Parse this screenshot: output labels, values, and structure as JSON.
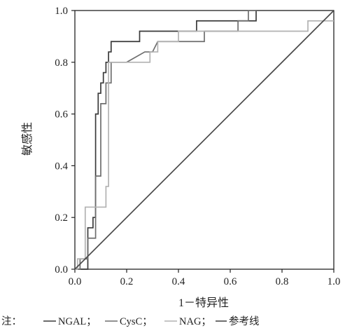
{
  "chart_data": {
    "type": "line",
    "xlabel": "1－特异性",
    "ylabel": "敏感性",
    "xlim": [
      0,
      1
    ],
    "ylim": [
      0,
      1
    ],
    "x_ticks": [
      "0.0",
      "0.2",
      "0.4",
      "0.6",
      "0.8",
      "1.0"
    ],
    "y_ticks": [
      "0.0",
      "0.2",
      "0.4",
      "0.6",
      "0.8",
      "1.0"
    ],
    "grid": false,
    "legend_position": "bottom",
    "legend": {
      "prefix": "注：",
      "entries": [
        "NGAL；",
        "CysC；",
        "NAG；",
        "参考线"
      ]
    },
    "series": [
      {
        "name": "NGAL",
        "color": "#3a3a3a",
        "x": [
          0,
          0.05,
          0.05,
          0.07,
          0.07,
          0.08,
          0.08,
          0.09,
          0.09,
          0.1,
          0.1,
          0.11,
          0.11,
          0.12,
          0.12,
          0.13,
          0.13,
          0.14,
          0.14,
          0.16,
          0.16,
          0.25,
          0.25,
          0.31,
          0.31,
          0.47,
          0.47,
          0.7,
          0.7,
          0.82,
          0.82,
          1.0
        ],
        "y": [
          0,
          0,
          0.16,
          0.16,
          0.2,
          0.2,
          0.6,
          0.6,
          0.68,
          0.68,
          0.72,
          0.72,
          0.76,
          0.76,
          0.8,
          0.8,
          0.84,
          0.84,
          0.88,
          0.88,
          0.88,
          0.88,
          0.92,
          0.92,
          0.92,
          0.92,
          0.96,
          0.96,
          1.0,
          1.0,
          1.0,
          1.0
        ]
      },
      {
        "name": "CysC",
        "color": "#6e6e6e",
        "x": [
          0,
          0.02,
          0.02,
          0.05,
          0.05,
          0.08,
          0.08,
          0.1,
          0.1,
          0.12,
          0.12,
          0.14,
          0.14,
          0.2,
          0.27,
          0.3,
          0.3,
          0.32,
          0.38,
          0.5,
          0.5,
          0.63,
          0.63,
          0.67,
          0.67,
          1.0
        ],
        "y": [
          0,
          0,
          0.04,
          0.04,
          0.12,
          0.12,
          0.36,
          0.36,
          0.64,
          0.64,
          0.72,
          0.72,
          0.8,
          0.8,
          0.84,
          0.84,
          0.84,
          0.88,
          0.88,
          0.88,
          0.92,
          0.92,
          0.96,
          0.96,
          1.0,
          1.0
        ]
      },
      {
        "name": "NAG",
        "color": "#b2b2b2",
        "x": [
          0,
          0.01,
          0.01,
          0.04,
          0.04,
          0.1,
          0.1,
          0.12,
          0.12,
          0.13,
          0.13,
          0.2,
          0.2,
          0.29,
          0.29,
          0.32,
          0.32,
          0.4,
          0.4,
          0.9,
          0.9,
          1.0
        ],
        "y": [
          0,
          0,
          0.04,
          0.04,
          0.24,
          0.24,
          0.24,
          0.24,
          0.32,
          0.32,
          0.8,
          0.8,
          0.8,
          0.8,
          0.84,
          0.84,
          0.88,
          0.88,
          0.92,
          0.92,
          0.96,
          0.96
        ]
      },
      {
        "name": "参考线",
        "color": "#4a4a4a",
        "x": [
          0,
          1
        ],
        "y": [
          0,
          1
        ]
      }
    ]
  }
}
